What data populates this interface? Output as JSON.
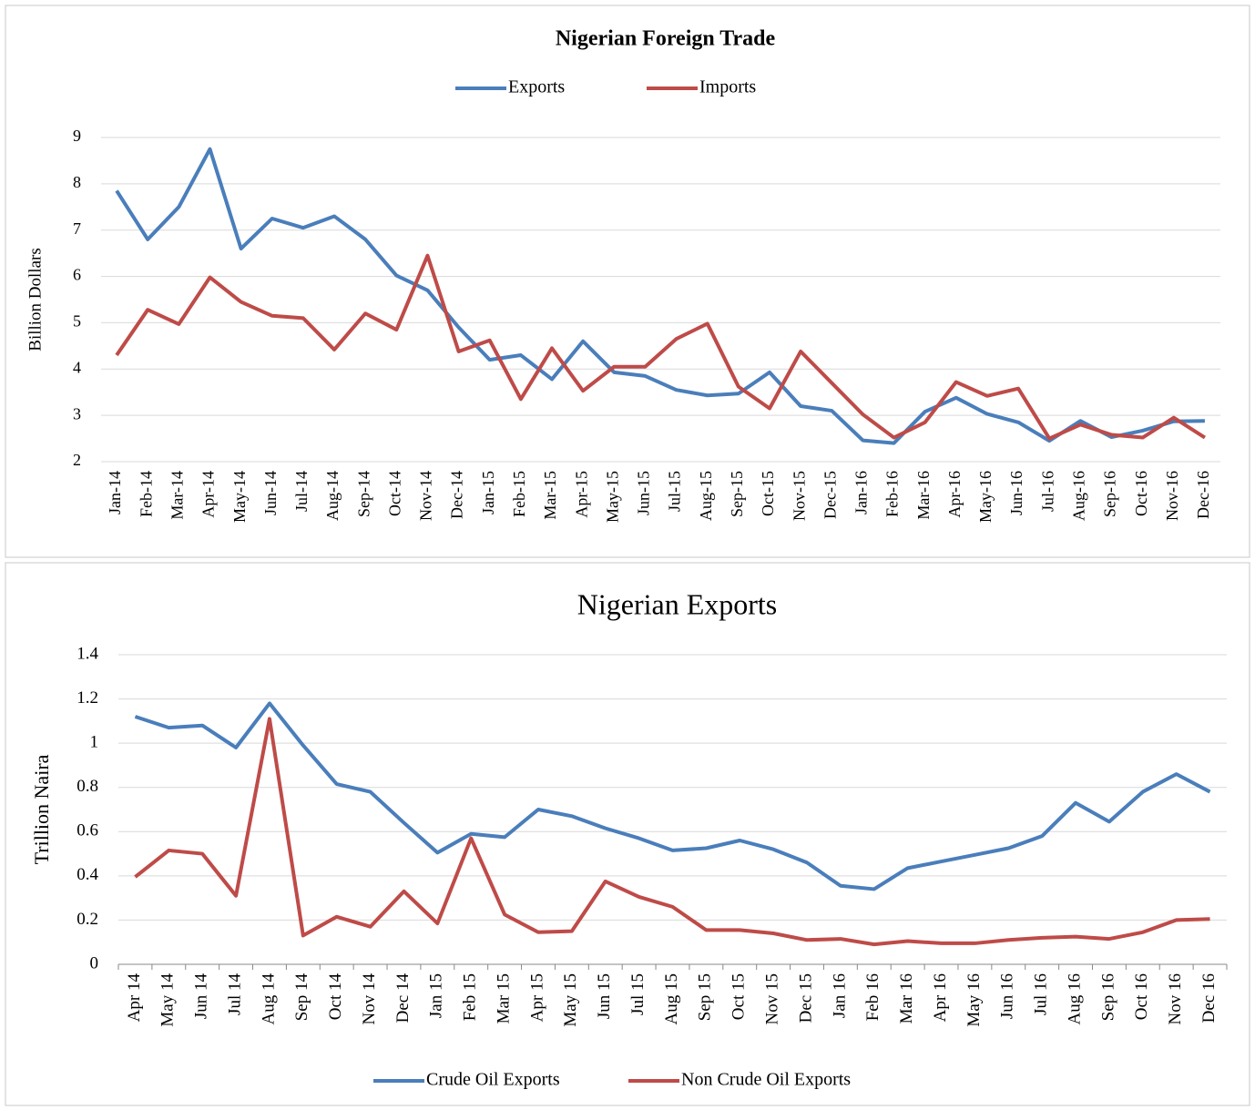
{
  "chart_data": [
    {
      "type": "line",
      "title": "Nigerian Foreign Trade",
      "y_label": "Billion Dollars",
      "categories": [
        "Jan-14",
        "Feb-14",
        "Mar-14",
        "Apr-14",
        "May-14",
        "Jun-14",
        "Jul-14",
        "Aug-14",
        "Sep-14",
        "Oct-14",
        "Nov-14",
        "Dec-14",
        "Jan-15",
        "Feb-15",
        "Mar-15",
        "Apr-15",
        "May-15",
        "Jun-15",
        "Jul-15",
        "Aug-15",
        "Sep-15",
        "Oct-15",
        "Nov-15",
        "Dec-15",
        "Jan-16",
        "Feb-16",
        "Mar-16",
        "Apr-16",
        "May-16",
        "Jun-16",
        "Jul-16",
        "Aug-16",
        "Sep-16",
        "Oct-16",
        "Nov-16",
        "Dec-16"
      ],
      "series": [
        {
          "name": "Exports",
          "color": "#4a7ebb",
          "values": [
            7.85,
            6.8,
            7.5,
            8.75,
            6.6,
            7.25,
            7.05,
            7.3,
            6.8,
            6.02,
            5.7,
            4.9,
            4.2,
            4.3,
            3.78,
            4.6,
            3.93,
            3.85,
            3.55,
            3.43,
            3.47,
            3.93,
            3.2,
            3.1,
            2.46,
            2.4,
            3.08,
            3.38,
            3.03,
            2.85,
            2.45,
            2.88,
            2.53,
            2.67,
            2.87,
            2.88
          ]
        },
        {
          "name": "Imports",
          "color": "#be4b48",
          "values": [
            4.3,
            5.28,
            4.97,
            5.98,
            5.45,
            5.15,
            5.1,
            4.42,
            5.2,
            4.85,
            6.45,
            4.38,
            4.62,
            3.35,
            4.45,
            3.53,
            4.05,
            4.05,
            4.65,
            4.98,
            3.62,
            3.15,
            4.38,
            3.7,
            3.02,
            2.52,
            2.85,
            3.72,
            3.42,
            3.58,
            2.5,
            2.8,
            2.58,
            2.52,
            2.95,
            2.52
          ]
        }
      ],
      "ylim": [
        2,
        9
      ],
      "yticks": [
        2,
        3,
        4,
        5,
        6,
        7,
        8,
        9
      ],
      "grid": true,
      "legend": "top"
    },
    {
      "type": "line",
      "title": "Nigerian Exports",
      "y_label": "Trillion Naira",
      "categories": [
        "Apr 14",
        "May 14",
        "Jun 14",
        "Jul 14",
        "Aug 14",
        "Sep 14",
        "Oct 14",
        "Nov 14",
        "Dec 14",
        "Jan 15",
        "Feb 15",
        "Mar 15",
        "Apr 15",
        "May 15",
        "Jun 15",
        "Jul 15",
        "Aug 15",
        "Sep 15",
        "Oct 15",
        "Nov 15",
        "Dec 15",
        "Jan 16",
        "Feb 16",
        "Mar 16",
        "Apr 16",
        "May 16",
        "Jun 16",
        "Jul 16",
        "Aug 16",
        "Sep 16",
        "Oct 16",
        "Nov 16",
        "Dec 16"
      ],
      "series": [
        {
          "name": "Crude Oil Exports",
          "color": "#4a7ebb",
          "values": [
            1.12,
            1.07,
            1.08,
            0.98,
            1.18,
            0.99,
            0.815,
            0.78,
            0.64,
            0.505,
            0.59,
            0.575,
            0.7,
            0.67,
            0.615,
            0.57,
            0.515,
            0.525,
            0.56,
            0.52,
            0.46,
            0.355,
            0.34,
            0.435,
            0.465,
            0.495,
            0.525,
            0.58,
            0.73,
            0.645,
            0.78,
            0.86,
            0.78
          ]
        },
        {
          "name": "Non Crude Oil Exports",
          "color": "#be4b48",
          "values": [
            0.395,
            0.515,
            0.5,
            0.31,
            1.11,
            0.13,
            0.215,
            0.17,
            0.33,
            0.185,
            0.57,
            0.225,
            0.145,
            0.15,
            0.375,
            0.305,
            0.26,
            0.155,
            0.155,
            0.14,
            0.11,
            0.115,
            0.09,
            0.105,
            0.095,
            0.095,
            0.11,
            0.12,
            0.125,
            0.115,
            0.145,
            0.2,
            0.205
          ]
        }
      ],
      "ylim": [
        0,
        1.4
      ],
      "yticks": [
        0,
        0.2,
        0.4,
        0.6,
        0.8,
        1,
        1.2,
        1.4
      ],
      "grid": true,
      "legend": "bottom"
    }
  ]
}
